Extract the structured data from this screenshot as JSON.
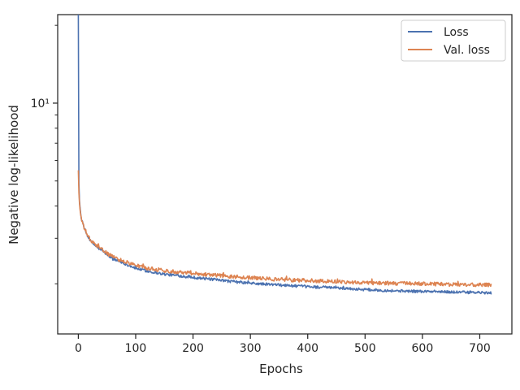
{
  "chart_data": {
    "type": "line",
    "xlabel": "Epochs",
    "ylabel": "Negative log-likelihood",
    "yscale": "log",
    "xlim": [
      -36,
      756
    ],
    "ylim": [
      1.28,
      22.0
    ],
    "x_ticks": [
      0,
      100,
      200,
      300,
      400,
      500,
      600,
      700
    ],
    "x_tick_labels": [
      "0",
      "100",
      "200",
      "300",
      "400",
      "500",
      "600",
      "700"
    ],
    "y_ticks": [
      10
    ],
    "y_tick_labels": [
      "10¹"
    ],
    "grid": false,
    "legend_position": "top-right",
    "series": [
      {
        "name": "Loss",
        "color": "#4c72b0",
        "x": [
          0,
          1,
          2,
          4,
          6,
          10,
          15,
          20,
          30,
          40,
          50,
          60,
          80,
          100,
          120,
          150,
          200,
          250,
          300,
          350,
          400,
          450,
          500,
          550,
          600,
          650,
          700,
          720
        ],
        "y": [
          22.0,
          4.9,
          4.2,
          3.75,
          3.5,
          3.3,
          3.1,
          2.95,
          2.8,
          2.7,
          2.6,
          2.5,
          2.4,
          2.3,
          2.24,
          2.18,
          2.12,
          2.06,
          2.01,
          1.98,
          1.95,
          1.93,
          1.9,
          1.88,
          1.87,
          1.86,
          1.85,
          1.84
        ]
      },
      {
        "name": "Val. loss",
        "color": "#dd8452",
        "x": [
          0,
          1,
          2,
          4,
          6,
          10,
          15,
          20,
          30,
          40,
          50,
          60,
          80,
          100,
          120,
          150,
          200,
          250,
          300,
          350,
          400,
          450,
          500,
          550,
          600,
          650,
          700,
          720
        ],
        "y": [
          5.5,
          4.5,
          4.1,
          3.7,
          3.5,
          3.3,
          3.12,
          2.97,
          2.82,
          2.72,
          2.63,
          2.54,
          2.44,
          2.36,
          2.3,
          2.25,
          2.2,
          2.15,
          2.11,
          2.08,
          2.06,
          2.04,
          2.02,
          2.01,
          2.0,
          1.99,
          1.98,
          1.98
        ]
      }
    ]
  }
}
